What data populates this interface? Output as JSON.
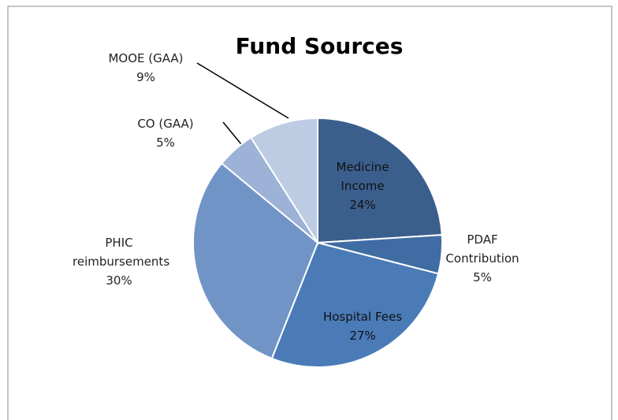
{
  "chart_data": {
    "type": "pie",
    "title": "Fund Sources",
    "categories": [
      "Medicine Income",
      "PDAF Contribution",
      "Hospital Fees",
      "PHIC reimbursements",
      "CO (GAA)",
      "MOOE (GAA)"
    ],
    "values": [
      24,
      5,
      27,
      30,
      5,
      9
    ],
    "value_labels": [
      "24%",
      "5%",
      "27%",
      "30%",
      "5%",
      "9%"
    ],
    "colors": [
      "#3b5f8d",
      "#3f6ca3",
      "#4a7bb7",
      "#7094c6",
      "#9cb2d6",
      "#bdcce3"
    ]
  }
}
